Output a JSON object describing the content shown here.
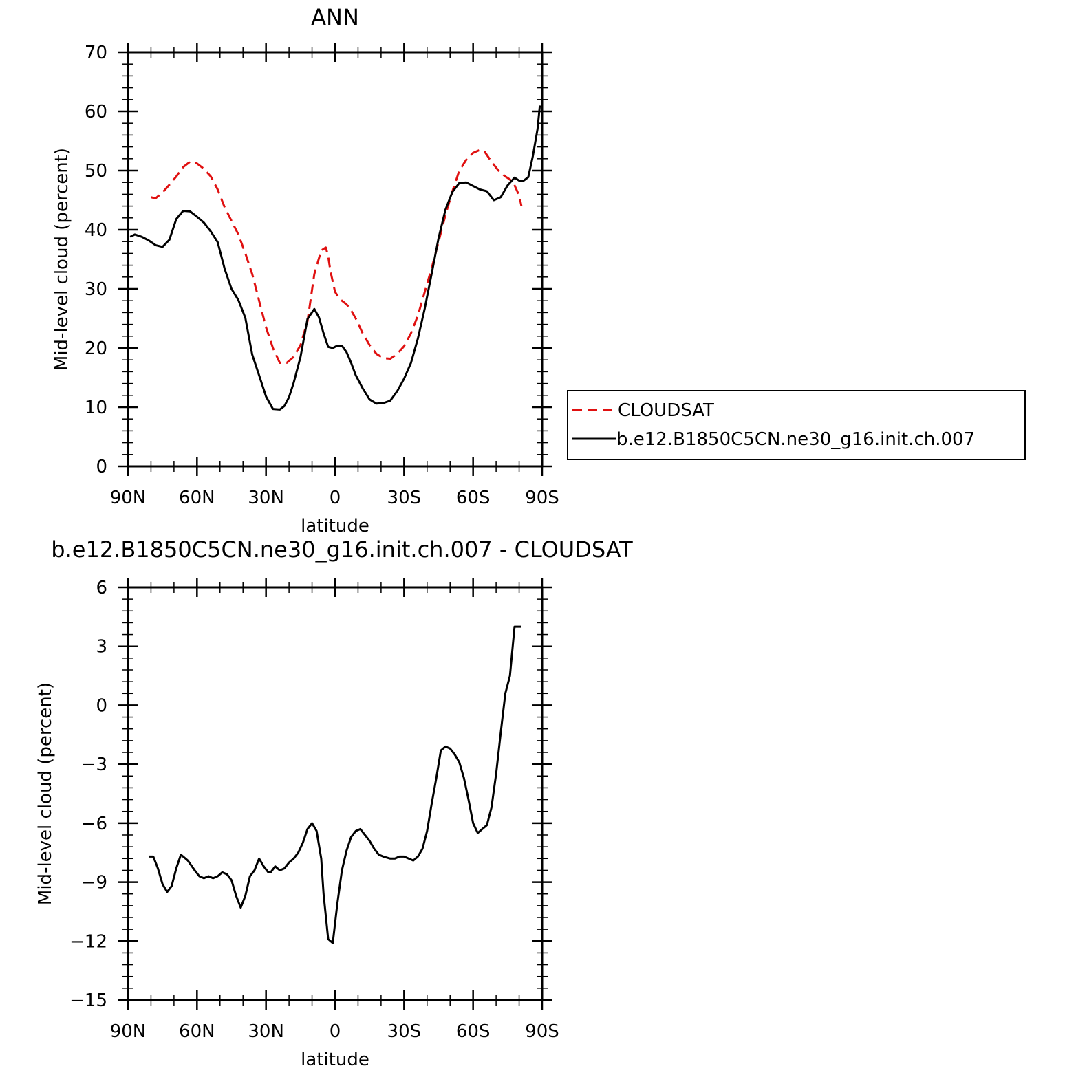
{
  "chart_data": [
    {
      "type": "line",
      "title": "ANN",
      "xlabel": "latitude",
      "ylabel": "Mid-level cloud (percent)",
      "xlim": [
        -90,
        90
      ],
      "ylim": [
        0,
        70
      ],
      "xticks": [
        -90,
        -60,
        -30,
        0,
        30,
        60,
        90
      ],
      "xticklabels": [
        "90N",
        "60N",
        "30N",
        "0",
        "30S",
        "60S",
        "90S"
      ],
      "yticks": [
        0,
        10,
        20,
        30,
        40,
        50,
        60,
        70
      ],
      "yticklabels": [
        "0",
        "10",
        "20",
        "30",
        "40",
        "50",
        "60",
        "70"
      ],
      "grid": false,
      "legend_position": "right",
      "series": [
        {
          "name": "CLOUDSAT",
          "color": "#e01010",
          "dash": "dashed",
          "x": [
            -80,
            -78,
            -75,
            -72,
            -69,
            -66,
            -63,
            -60,
            -57,
            -54,
            -51,
            -48,
            -45,
            -42,
            -39,
            -36,
            -33,
            -30,
            -27,
            -24,
            -21,
            -18,
            -15,
            -12,
            -9,
            -6,
            -4,
            -3,
            -2,
            0,
            2,
            4,
            6,
            9,
            12,
            15,
            18,
            21,
            24,
            27,
            30,
            33,
            36,
            39,
            42,
            45,
            48,
            51,
            54,
            57,
            60,
            63,
            65,
            68,
            71,
            74,
            76,
            78,
            80,
            81
          ],
          "y": [
            45.5,
            45.3,
            46.3,
            47.6,
            49.0,
            50.6,
            51.5,
            51.2,
            50.3,
            49.0,
            46.8,
            43.8,
            41.5,
            39.2,
            36.0,
            32.5,
            28.0,
            23.5,
            20.0,
            17.5,
            17.5,
            18.5,
            20.5,
            24.5,
            32.5,
            36.5,
            37.0,
            35.5,
            33.0,
            29.5,
            28.3,
            27.7,
            27.0,
            25.0,
            22.5,
            20.5,
            19.0,
            18.3,
            18.2,
            19.0,
            20.3,
            22.5,
            25.5,
            29.5,
            33.5,
            38.0,
            42.5,
            46.5,
            50.0,
            51.8,
            53.0,
            53.5,
            53.2,
            51.5,
            50.0,
            49.0,
            48.5,
            47.5,
            45.8,
            44.0
          ]
        },
        {
          "name": "b.e12.B1850C5CN.ne30_g16.init.ch.007",
          "color": "#000000",
          "dash": "solid",
          "x": [
            -89,
            -87,
            -84,
            -81,
            -78,
            -75,
            -72,
            -69,
            -66,
            -63,
            -60,
            -57,
            -54,
            -51,
            -48,
            -45,
            -42,
            -39,
            -36,
            -33,
            -30,
            -27,
            -24,
            -22,
            -20,
            -18,
            -15,
            -12,
            -9,
            -7,
            -5,
            -3,
            -1,
            1,
            3,
            5,
            7,
            9,
            12,
            15,
            18,
            21,
            24,
            27,
            30,
            33,
            36,
            39,
            42,
            45,
            48,
            51,
            54,
            57,
            60,
            63,
            66,
            69,
            72,
            75,
            78,
            80,
            82,
            84,
            86,
            88,
            89
          ],
          "y": [
            38.8,
            39.2,
            38.8,
            38.2,
            37.4,
            37.1,
            38.3,
            41.8,
            43.2,
            43.1,
            42.2,
            41.2,
            39.7,
            37.9,
            33.4,
            30.0,
            28.1,
            25.1,
            18.9,
            15.4,
            11.8,
            9.7,
            9.6,
            10.2,
            11.7,
            14.1,
            18.5,
            24.9,
            26.6,
            25.2,
            22.5,
            20.2,
            20.0,
            20.4,
            20.4,
            19.3,
            17.5,
            15.4,
            13.2,
            11.3,
            10.6,
            10.7,
            11.1,
            12.7,
            14.8,
            17.5,
            21.6,
            26.7,
            32.6,
            38.6,
            43.4,
            46.4,
            47.9,
            48.0,
            47.4,
            46.8,
            46.5,
            45.0,
            45.5,
            47.5,
            48.8,
            48.3,
            48.3,
            48.9,
            52.5,
            57.0,
            61.0
          ]
        }
      ]
    },
    {
      "type": "line",
      "title": "b.e12.B1850C5CN.ne30_g16.init.ch.007 - CLOUDSAT",
      "xlabel": "latitude",
      "ylabel": "Mid-level cloud (percent)",
      "xlim": [
        -90,
        90
      ],
      "ylim": [
        -15,
        6
      ],
      "xticks": [
        -90,
        -60,
        -30,
        0,
        30,
        60,
        90
      ],
      "xticklabels": [
        "90N",
        "60N",
        "30N",
        "0",
        "30S",
        "60S",
        "90S"
      ],
      "yticks": [
        -15,
        -12,
        -9,
        -6,
        -3,
        0,
        3,
        6
      ],
      "yticklabels": [
        "−15",
        "−12",
        "−9",
        "−6",
        "−3",
        "0",
        "3",
        "6"
      ],
      "grid": false,
      "series": [
        {
          "color": "#000000",
          "dash": "solid",
          "x": [
            -81,
            -79,
            -77,
            -75,
            -73,
            -71,
            -69,
            -67,
            -64,
            -61,
            -59,
            -57,
            -55,
            -53,
            -51,
            -49,
            -47,
            -45,
            -43,
            -41,
            -39,
            -37,
            -35,
            -33,
            -31,
            -29,
            -28,
            -26,
            -24,
            -22,
            -20,
            -18,
            -16,
            -14,
            -12,
            -10,
            -8,
            -6,
            -5,
            -3,
            -1,
            1,
            3,
            5,
            7,
            9,
            11,
            13,
            15,
            17,
            19,
            21,
            24,
            26,
            28,
            30,
            32,
            34,
            36,
            38,
            40,
            42,
            44,
            46,
            48,
            50,
            52,
            54,
            56,
            58,
            60,
            62,
            64,
            66,
            68,
            70,
            72,
            74,
            76,
            78,
            80,
            81
          ],
          "y": [
            -7.7,
            -7.7,
            -8.3,
            -9.1,
            -9.5,
            -9.2,
            -8.3,
            -7.6,
            -7.9,
            -8.4,
            -8.7,
            -8.8,
            -8.7,
            -8.8,
            -8.7,
            -8.5,
            -8.6,
            -8.9,
            -9.7,
            -10.3,
            -9.7,
            -8.7,
            -8.4,
            -7.8,
            -8.2,
            -8.5,
            -8.5,
            -8.2,
            -8.4,
            -8.3,
            -8.0,
            -7.8,
            -7.5,
            -7.0,
            -6.3,
            -6.0,
            -6.4,
            -7.8,
            -9.6,
            -11.9,
            -12.1,
            -10.1,
            -8.4,
            -7.4,
            -6.7,
            -6.4,
            -6.3,
            -6.6,
            -6.9,
            -7.3,
            -7.6,
            -7.7,
            -7.8,
            -7.8,
            -7.7,
            -7.7,
            -7.8,
            -7.9,
            -7.7,
            -7.3,
            -6.4,
            -5.0,
            -3.7,
            -2.3,
            -2.1,
            -2.2,
            -2.5,
            -2.9,
            -3.7,
            -4.8,
            -6.0,
            -6.5,
            -6.3,
            -6.1,
            -5.2,
            -3.5,
            -1.4,
            0.6,
            1.5,
            4.0,
            4.0,
            4.0
          ]
        }
      ]
    }
  ]
}
